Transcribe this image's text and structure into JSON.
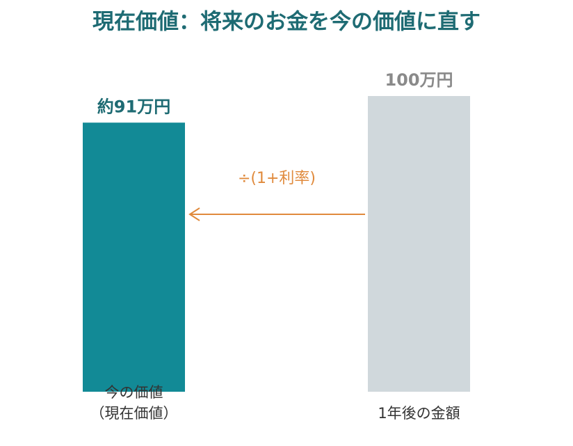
{
  "chart_data": {
    "type": "bar",
    "title": "現在価値：将来のお金を今の価値に直す",
    "categories": [
      "今の価値\n（現在価値）",
      "1年後の金額"
    ],
    "values": [
      91,
      100
    ],
    "value_labels": [
      "約91万円",
      "100万円"
    ],
    "colors": [
      "#128a96",
      "#d0d8dc"
    ],
    "value_label_colors": [
      "#1e6b73",
      "#8a8a8a"
    ],
    "annotation": "÷(1+利率)",
    "annotation_color": "#e08a3c"
  }
}
